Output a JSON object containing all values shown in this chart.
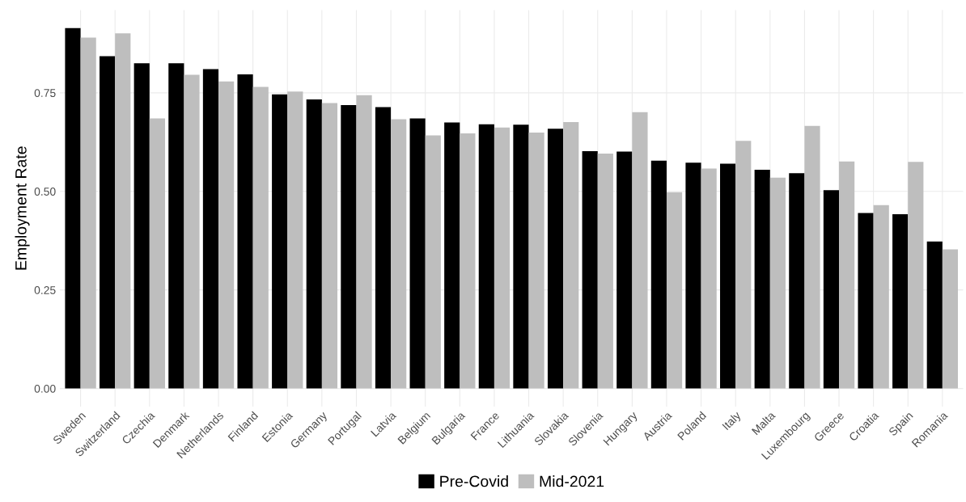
{
  "chart_data": {
    "type": "bar",
    "ylabel": "Employment Rate",
    "categories": [
      "Sweden",
      "Switzerland",
      "Czechia",
      "Denmark",
      "Netherlands",
      "Finland",
      "Estonia",
      "Germany",
      "Portugal",
      "Latvia",
      "Belgium",
      "Bulgaria",
      "France",
      "Lithuania",
      "Slovakia",
      "Slovenia",
      "Hungary",
      "Austria",
      "Poland",
      "Italy",
      "Malta",
      "Luxembourg",
      "Greece",
      "Croatia",
      "Spain",
      "Romania"
    ],
    "series": [
      {
        "name": "Pre-Covid",
        "color": "#000000",
        "values": [
          0.914,
          0.843,
          0.825,
          0.825,
          0.81,
          0.797,
          0.746,
          0.733,
          0.719,
          0.714,
          0.685,
          0.675,
          0.67,
          0.669,
          0.659,
          0.602,
          0.601,
          0.578,
          0.573,
          0.57,
          0.555,
          0.546,
          0.503,
          0.445,
          0.442,
          0.373
        ]
      },
      {
        "name": "Mid-2021",
        "color": "#bebebe",
        "values": [
          0.89,
          0.901,
          0.685,
          0.796,
          0.779,
          0.765,
          0.753,
          0.724,
          0.744,
          0.683,
          0.642,
          0.647,
          0.662,
          0.649,
          0.676,
          0.596,
          0.701,
          0.498,
          0.558,
          0.628,
          0.535,
          0.666,
          0.576,
          0.465,
          0.575,
          0.353
        ]
      }
    ],
    "ylim": [
      -0.046,
      0.96
    ],
    "yticks": [
      {
        "value": 0,
        "label": "0.00"
      },
      {
        "value": 0.25,
        "label": "0.25"
      },
      {
        "value": 0.5,
        "label": "0.50"
      },
      {
        "value": 0.75,
        "label": "0.75"
      }
    ],
    "grid": true,
    "legend": "bottom"
  }
}
